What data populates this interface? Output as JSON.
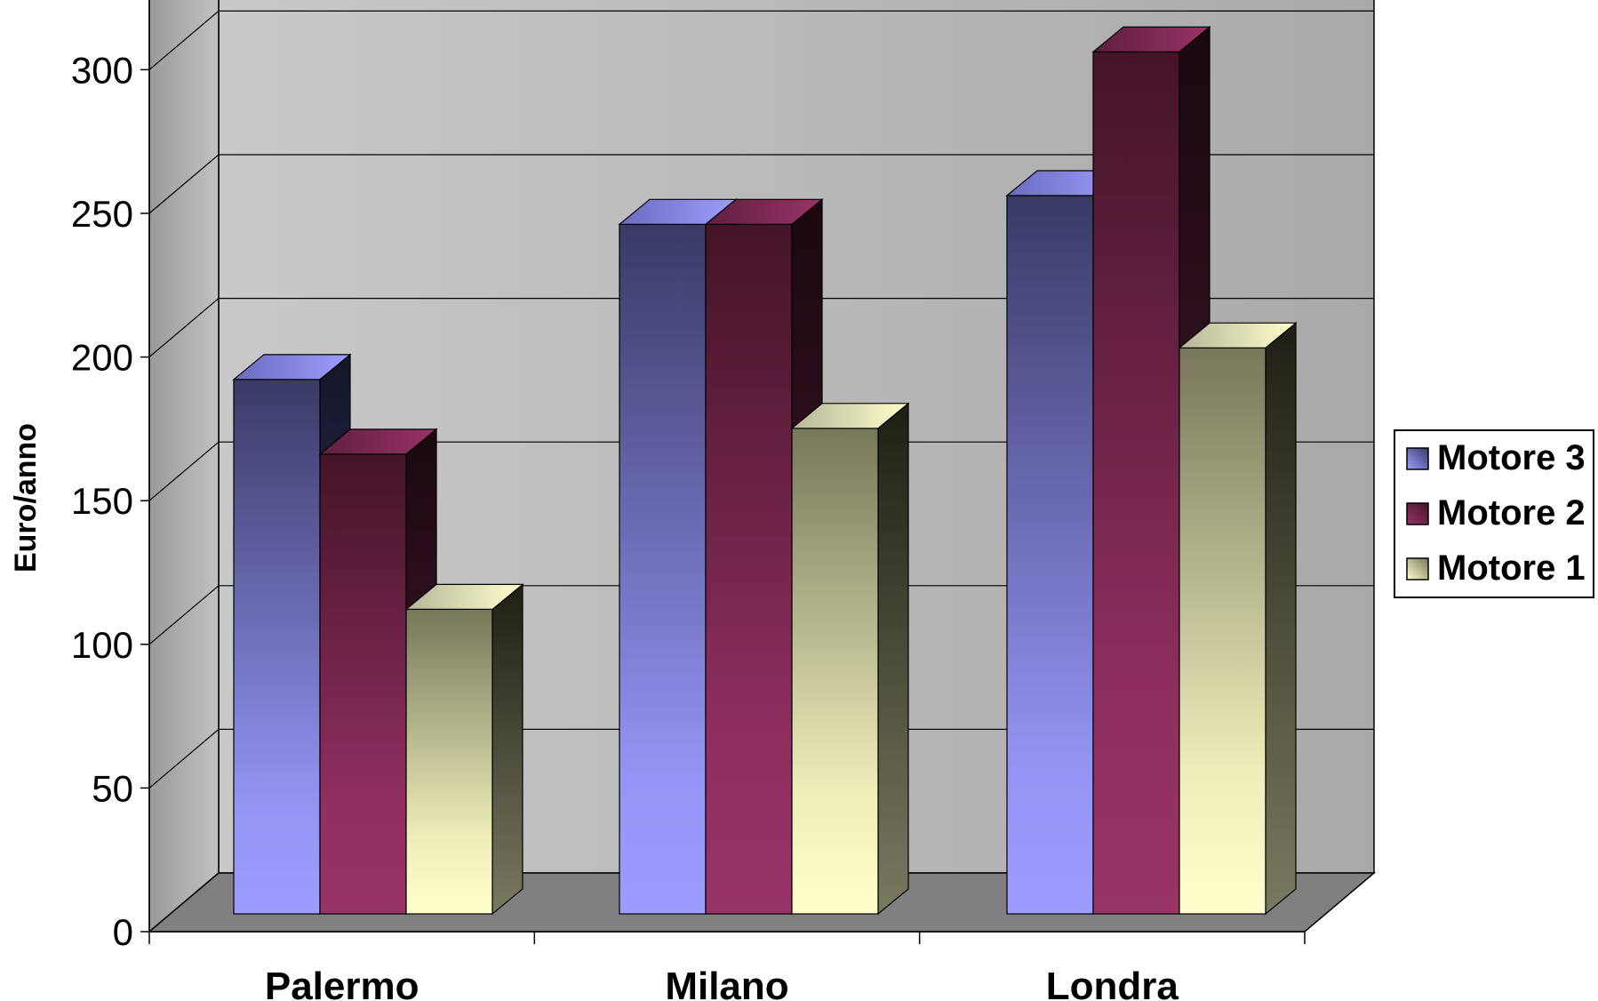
{
  "chart_data": {
    "type": "bar",
    "ylabel": "Euro/anno",
    "xlabel": "",
    "ylim": [
      0,
      300
    ],
    "yticks": [
      "0",
      "50",
      "100",
      "150",
      "200",
      "250",
      "300"
    ],
    "categories": [
      "Palermo",
      "Milano",
      "Londra"
    ],
    "series": [
      {
        "name": "Motore 3",
        "values": [
          186,
          240,
          250
        ],
        "color": "#9d9dff"
      },
      {
        "name": "Motore 2",
        "values": [
          160,
          240,
          300
        ],
        "color": "#993366"
      },
      {
        "name": "Motore 1",
        "values": [
          106,
          169,
          197
        ],
        "color": "#ffffcc"
      }
    ],
    "legend_position": "right",
    "legend_order": [
      "Motore 3",
      "Motore 2",
      "Motore 1"
    ],
    "grid": true,
    "style": "3d-clustered-column",
    "colors": {
      "wall": "#c4c4c4",
      "side_wall": "#a6a6a6",
      "floor": "#808080"
    }
  }
}
